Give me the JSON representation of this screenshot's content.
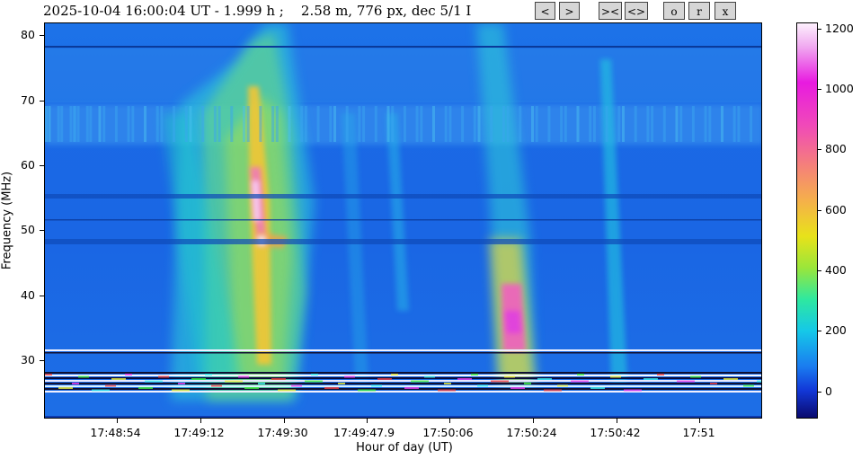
{
  "header": {
    "title": "2025-10-04 16:00:04 UT - 1.999 h ;    2.58 m, 776 px, dec 5/1 I"
  },
  "toolbar": {
    "buttons": [
      "<",
      ">",
      "><",
      "<>",
      "o",
      "r",
      "x"
    ]
  },
  "chart_data": {
    "type": "heatmap",
    "xlabel": "Hour of day (UT)",
    "ylabel": "Frequency (MHz)",
    "x_ticks": [
      "17:48:54",
      "17:49:12",
      "17:49:30",
      "17:49:47.9",
      "17:50:06",
      "17:50:24",
      "17:50:42",
      "17:51"
    ],
    "y_ticks": [
      "30",
      "40",
      "50",
      "60",
      "70",
      "80"
    ],
    "ylim": [
      21,
      82
    ],
    "colorbar": {
      "ticks": [
        "0",
        "200",
        "400",
        "600",
        "800",
        "1000",
        "1200"
      ],
      "range": [
        -90,
        1220
      ]
    },
    "features": [
      {
        "time": "17:49:27",
        "freq_low": 28,
        "freq_high": 72,
        "peak_freq": 55,
        "intensity": 1150
      },
      {
        "time": "17:50:20",
        "freq_low": 28,
        "freq_high": 75,
        "peak_freq": 36,
        "intensity": 1050
      },
      {
        "time": "17:50:41",
        "freq_low": 28,
        "freq_high": 65,
        "peak_freq": 40,
        "intensity": 250
      }
    ]
  }
}
